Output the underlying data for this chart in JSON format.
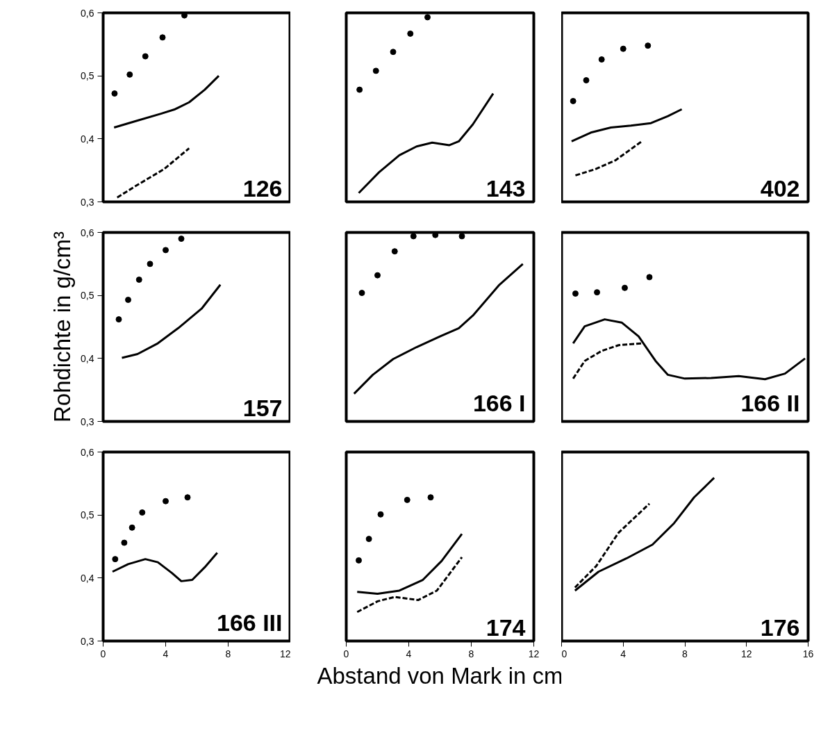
{
  "chart_data": [
    {
      "type": "line",
      "annotations": [
        "126"
      ],
      "xlim": [
        0,
        12
      ],
      "ylim": [
        0.3,
        0.6
      ],
      "yticks": [
        {
          "value": 0.3,
          "label": "0,3"
        },
        {
          "value": 0.4,
          "label": "0,4"
        },
        {
          "value": 0.5,
          "label": "0,5"
        },
        {
          "value": 0.6,
          "label": "0,6"
        }
      ],
      "tick_labels": "y",
      "grid": false,
      "series": [
        {
          "type": "scatter",
          "marker": "circle",
          "color": "#000000",
          "x": [
            0.73,
            1.7,
            2.7,
            3.8,
            5.2
          ],
          "values": [
            0.472,
            0.502,
            0.531,
            0.561,
            0.596
          ]
        },
        {
          "line_style": "solid",
          "color": "#000000",
          "x": [
            0.7,
            2.2,
            3.7,
            4.6,
            5.5,
            6.5,
            7.4
          ],
          "values": [
            0.418,
            0.429,
            0.44,
            0.447,
            0.458,
            0.478,
            0.5
          ]
        },
        {
          "line_style": "dashed",
          "color": "#000000",
          "x": [
            0.9,
            2.2,
            3.9,
            5.5
          ],
          "values": [
            0.307,
            0.327,
            0.352,
            0.385
          ]
        }
      ]
    },
    {
      "type": "line",
      "annotations": [
        "143"
      ],
      "xlim": [
        0,
        12
      ],
      "ylim": [
        0.3,
        0.6
      ],
      "tick_labels": false,
      "grid": false,
      "series": [
        {
          "type": "scatter",
          "marker": "circle",
          "color": "#000000",
          "x": [
            0.85,
            1.9,
            3.0,
            4.1,
            5.2
          ],
          "values": [
            0.478,
            0.508,
            0.538,
            0.567,
            0.593
          ]
        },
        {
          "line_style": "solid",
          "color": "#000000",
          "x": [
            0.8,
            2.1,
            3.4,
            4.5,
            5.5,
            6.6,
            7.2,
            8.1,
            9.4
          ],
          "values": [
            0.314,
            0.347,
            0.374,
            0.388,
            0.394,
            0.39,
            0.396,
            0.423,
            0.472
          ]
        }
      ]
    },
    {
      "type": "line",
      "annotations": [
        "402"
      ],
      "xlim": [
        0,
        16
      ],
      "ylim": [
        0.3,
        0.6
      ],
      "tick_labels": false,
      "grid": false,
      "series": [
        {
          "type": "scatter",
          "marker": "circle",
          "color": "#000000",
          "x": [
            0.75,
            1.6,
            2.6,
            4.0,
            5.6
          ],
          "values": [
            0.46,
            0.493,
            0.526,
            0.543,
            0.548
          ]
        },
        {
          "line_style": "solid",
          "color": "#000000",
          "x": [
            0.65,
            1.9,
            3.2,
            4.5,
            5.8,
            6.9,
            7.8
          ],
          "values": [
            0.396,
            0.41,
            0.418,
            0.421,
            0.425,
            0.436,
            0.447
          ]
        },
        {
          "line_style": "dashed",
          "color": "#000000",
          "x": [
            0.9,
            2.2,
            3.5,
            5.2
          ],
          "values": [
            0.342,
            0.352,
            0.366,
            0.396
          ]
        }
      ]
    },
    {
      "type": "line",
      "ylabel": "Rohdichte in g/cm³",
      "annotations": [
        "157"
      ],
      "xlim": [
        0,
        12
      ],
      "ylim": [
        0.3,
        0.6
      ],
      "yticks": [
        {
          "value": 0.3,
          "label": "0,3"
        },
        {
          "value": 0.4,
          "label": "0,4"
        },
        {
          "value": 0.5,
          "label": "0,5"
        },
        {
          "value": 0.6,
          "label": "0,6"
        }
      ],
      "tick_labels": "y",
      "grid": false,
      "series": [
        {
          "type": "scatter",
          "marker": "circle",
          "color": "#000000",
          "x": [
            1.0,
            1.6,
            2.3,
            3.0,
            4.0,
            5.0
          ],
          "values": [
            0.462,
            0.493,
            0.525,
            0.55,
            0.572,
            0.59
          ]
        },
        {
          "line_style": "solid",
          "color": "#000000",
          "x": [
            1.2,
            2.2,
            3.5,
            4.8,
            6.3,
            7.5
          ],
          "values": [
            0.401,
            0.407,
            0.424,
            0.448,
            0.479,
            0.517
          ]
        }
      ]
    },
    {
      "type": "line",
      "annotations": [
        "166 I"
      ],
      "xlim": [
        0,
        12
      ],
      "ylim": [
        0.3,
        0.6
      ],
      "tick_labels": false,
      "grid": false,
      "series": [
        {
          "type": "scatter",
          "marker": "circle",
          "color": "#000000",
          "x": [
            1.0,
            2.0,
            3.1,
            4.3,
            5.7,
            7.4
          ],
          "values": [
            0.504,
            0.532,
            0.57,
            0.594,
            0.596,
            0.594
          ]
        },
        {
          "line_style": "solid",
          "color": "#000000",
          "x": [
            0.5,
            1.7,
            3.0,
            4.5,
            6.0,
            7.2,
            8.1,
            9.8,
            11.3
          ],
          "values": [
            0.344,
            0.374,
            0.399,
            0.418,
            0.435,
            0.448,
            0.468,
            0.517,
            0.55
          ]
        }
      ]
    },
    {
      "type": "line",
      "annotations": [
        "166 II"
      ],
      "xlim": [
        0,
        16
      ],
      "ylim": [
        0.3,
        0.6
      ],
      "tick_labels": false,
      "grid": false,
      "series": [
        {
          "type": "scatter",
          "marker": "circle",
          "color": "#000000",
          "x": [
            0.9,
            2.3,
            4.1,
            5.7
          ],
          "values": [
            0.503,
            0.505,
            0.512,
            0.529
          ]
        },
        {
          "line_style": "solid",
          "color": "#000000",
          "x": [
            0.75,
            1.5,
            2.8,
            3.9,
            5.0,
            6.1,
            6.9,
            8.0,
            9.7,
            11.5,
            13.2,
            14.5,
            15.8
          ],
          "values": [
            0.424,
            0.451,
            0.462,
            0.457,
            0.435,
            0.396,
            0.374,
            0.368,
            0.369,
            0.372,
            0.367,
            0.376,
            0.4
          ]
        },
        {
          "line_style": "dashed",
          "color": "#000000",
          "x": [
            0.75,
            1.5,
            2.6,
            3.7,
            5.2
          ],
          "values": [
            0.368,
            0.396,
            0.412,
            0.421,
            0.424
          ]
        }
      ]
    },
    {
      "type": "line",
      "annotations": [
        "166 III"
      ],
      "xlim": [
        0,
        12
      ],
      "ylim": [
        0.3,
        0.6
      ],
      "xticks": [
        0,
        4,
        8,
        12
      ],
      "yticks": [
        {
          "value": 0.3,
          "label": "0,3"
        },
        {
          "value": 0.4,
          "label": "0,4"
        },
        {
          "value": 0.5,
          "label": "0,5"
        },
        {
          "value": 0.6,
          "label": "0,6"
        }
      ],
      "grid": false,
      "series": [
        {
          "type": "scatter",
          "marker": "circle",
          "color": "#000000",
          "x": [
            0.77,
            1.35,
            1.85,
            2.5,
            4.0,
            5.4
          ],
          "values": [
            0.43,
            0.456,
            0.48,
            0.504,
            0.522,
            0.528
          ]
        },
        {
          "line_style": "solid",
          "color": "#000000",
          "x": [
            0.6,
            1.6,
            2.7,
            3.5,
            4.4,
            5.0,
            5.7,
            6.5,
            7.3
          ],
          "values": [
            0.41,
            0.422,
            0.43,
            0.425,
            0.408,
            0.395,
            0.397,
            0.417,
            0.44
          ]
        }
      ]
    },
    {
      "type": "line",
      "xlabel": "Abstand von Mark in cm",
      "annotations": [
        "174"
      ],
      "xlim": [
        0,
        12
      ],
      "ylim": [
        0.3,
        0.6
      ],
      "xticks": [
        0,
        4,
        8,
        12
      ],
      "tick_labels": "x",
      "grid": false,
      "series": [
        {
          "type": "scatter",
          "marker": "circle",
          "color": "#000000",
          "x": [
            0.8,
            1.45,
            2.2,
            3.9,
            5.4
          ],
          "values": [
            0.428,
            0.462,
            0.501,
            0.524,
            0.528
          ]
        },
        {
          "line_style": "solid",
          "color": "#000000",
          "x": [
            0.7,
            2.0,
            3.4,
            4.9,
            6.1,
            7.4
          ],
          "values": [
            0.378,
            0.375,
            0.38,
            0.397,
            0.427,
            0.47
          ]
        },
        {
          "line_style": "dashed",
          "color": "#000000",
          "x": [
            0.7,
            2.0,
            3.1,
            4.6,
            5.8,
            7.4
          ],
          "values": [
            0.346,
            0.363,
            0.37,
            0.365,
            0.38,
            0.433
          ]
        }
      ]
    },
    {
      "type": "line",
      "annotations": [
        "176"
      ],
      "xlim": [
        0,
        16
      ],
      "ylim": [
        0.3,
        0.6
      ],
      "xticks": [
        0,
        4,
        8,
        12,
        16
      ],
      "tick_labels": "x",
      "grid": false,
      "series": [
        {
          "line_style": "solid",
          "color": "#000000",
          "x": [
            0.87,
            2.4,
            4.2,
            5.9,
            7.3,
            8.6,
            9.9
          ],
          "values": [
            0.38,
            0.41,
            0.431,
            0.453,
            0.487,
            0.528,
            0.559
          ]
        },
        {
          "line_style": "dashed",
          "color": "#000000",
          "x": [
            0.87,
            2.25,
            3.7,
            5.7
          ],
          "values": [
            0.385,
            0.419,
            0.472,
            0.518
          ]
        }
      ]
    }
  ]
}
